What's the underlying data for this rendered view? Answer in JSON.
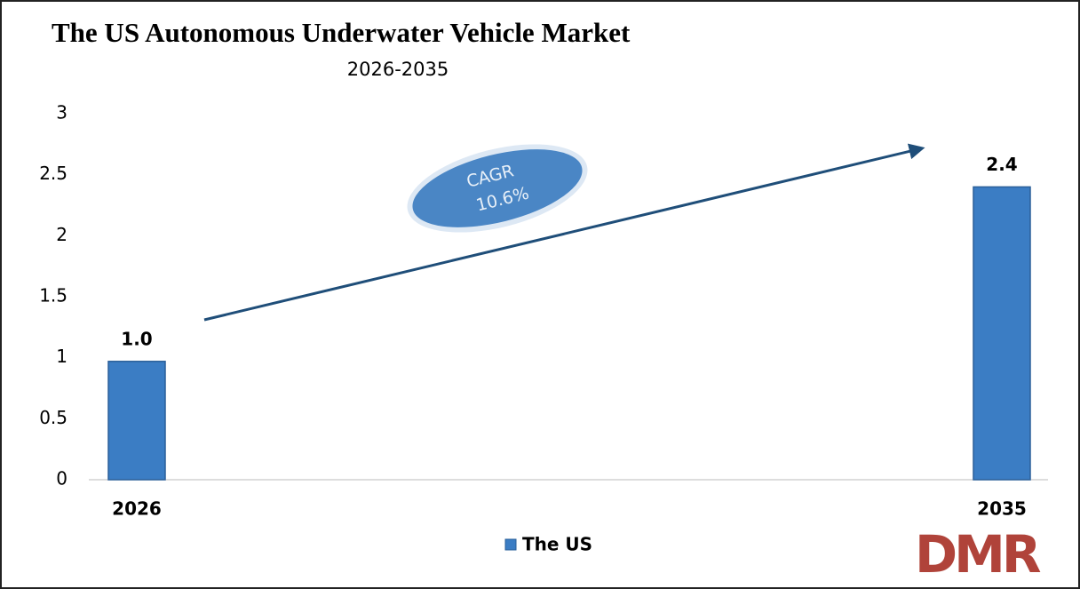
{
  "chart_data": {
    "type": "bar",
    "title": "The US Autonomous Underwater Vehicle Market",
    "subtitle": "2026-2035",
    "categories": [
      "2026",
      "2035"
    ],
    "series": [
      {
        "name": "The US",
        "color": "#3b7dc4",
        "values": [
          0.97,
          2.4
        ],
        "value_labels": [
          "1.0",
          "2.4"
        ]
      }
    ],
    "ylim": [
      0,
      3
    ],
    "yticks": [
      0,
      0.5,
      1,
      1.5,
      2,
      2.5,
      3
    ],
    "legend": "bottom",
    "annotation": {
      "label": "CAGR",
      "value": "10.6%"
    },
    "logo": "DMR"
  }
}
